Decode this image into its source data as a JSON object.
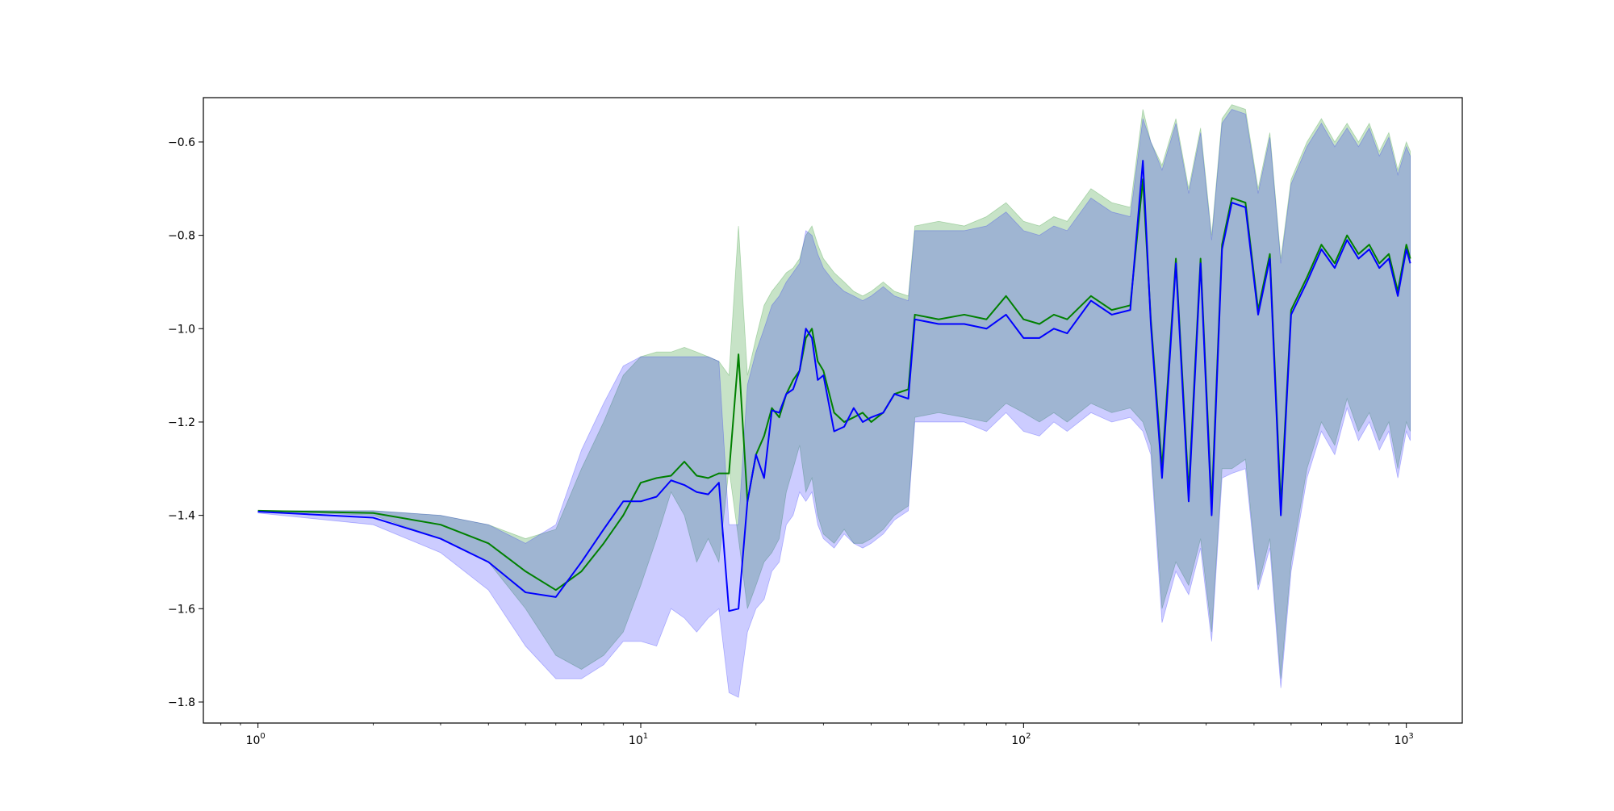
{
  "chart_data": {
    "type": "line",
    "title": "",
    "xlabel": "",
    "ylabel": "",
    "xscale": "log",
    "xlim": [
      0.72,
      1400
    ],
    "ylim": [
      -1.845,
      -0.505
    ],
    "x_ticks": [
      {
        "value": 1,
        "base": "10",
        "exp": "0"
      },
      {
        "value": 10,
        "base": "10",
        "exp": "1"
      },
      {
        "value": 100,
        "base": "10",
        "exp": "2"
      },
      {
        "value": 1000,
        "base": "10",
        "exp": "3"
      }
    ],
    "y_ticks": [
      {
        "value": -0.6,
        "label": "−0.6"
      },
      {
        "value": -0.8,
        "label": "−0.8"
      },
      {
        "value": -1.0,
        "label": "−1.0"
      },
      {
        "value": -1.2,
        "label": "−1.2"
      },
      {
        "value": -1.4,
        "label": "−1.4"
      },
      {
        "value": -1.6,
        "label": "−1.6"
      },
      {
        "value": -1.8,
        "label": "−1.8"
      }
    ],
    "grid": false,
    "legend": "none",
    "series": [
      {
        "color": "#008000",
        "band_color": "#008000",
        "band_opacity": 0.22,
        "x": [
          1,
          2,
          3,
          4,
          5,
          6,
          7,
          8,
          9,
          10,
          11,
          12,
          13,
          14,
          15,
          16,
          17,
          18,
          19,
          20,
          21,
          22,
          23,
          24,
          25,
          26,
          27,
          28,
          29,
          30,
          32,
          34,
          36,
          38,
          40,
          43,
          46,
          50,
          52,
          60,
          70,
          80,
          90,
          100,
          110,
          120,
          130,
          150,
          170,
          190,
          205,
          215,
          230,
          250,
          270,
          290,
          310,
          330,
          350,
          380,
          410,
          440,
          470,
          500,
          550,
          600,
          650,
          700,
          750,
          800,
          850,
          900,
          950,
          1000,
          1024
        ],
        "y": [
          -1.39,
          -1.395,
          -1.42,
          -1.46,
          -1.52,
          -1.56,
          -1.52,
          -1.46,
          -1.4,
          -1.33,
          -1.32,
          -1.315,
          -1.285,
          -1.315,
          -1.32,
          -1.31,
          -1.31,
          -1.055,
          -1.37,
          -1.27,
          -1.23,
          -1.17,
          -1.19,
          -1.14,
          -1.11,
          -1.09,
          -1.02,
          -1.0,
          -1.07,
          -1.09,
          -1.18,
          -1.2,
          -1.19,
          -1.18,
          -1.2,
          -1.18,
          -1.14,
          -1.13,
          -0.97,
          -0.98,
          -0.97,
          -0.98,
          -0.93,
          -0.98,
          -0.99,
          -0.97,
          -0.98,
          -0.93,
          -0.96,
          -0.95,
          -0.68,
          -0.98,
          -1.3,
          -0.85,
          -1.35,
          -0.85,
          -1.38,
          -0.82,
          -0.72,
          -0.73,
          -0.96,
          -0.84,
          -1.38,
          -0.96,
          -0.89,
          -0.82,
          -0.86,
          -0.8,
          -0.84,
          -0.82,
          -0.86,
          -0.84,
          -0.92,
          -0.82,
          -0.85
        ],
        "lower": [
          -1.39,
          -1.4,
          -1.45,
          -1.5,
          -1.6,
          -1.7,
          -1.73,
          -1.7,
          -1.65,
          -1.55,
          -1.45,
          -1.35,
          -1.4,
          -1.5,
          -1.45,
          -1.5,
          -1.3,
          -1.45,
          -1.6,
          -1.55,
          -1.5,
          -1.48,
          -1.45,
          -1.35,
          -1.3,
          -1.25,
          -1.35,
          -1.32,
          -1.4,
          -1.44,
          -1.46,
          -1.43,
          -1.46,
          -1.46,
          -1.45,
          -1.43,
          -1.4,
          -1.38,
          -1.19,
          -1.18,
          -1.19,
          -1.2,
          -1.16,
          -1.18,
          -1.2,
          -1.18,
          -1.2,
          -1.16,
          -1.18,
          -1.17,
          -1.2,
          -1.25,
          -1.6,
          -1.5,
          -1.55,
          -1.45,
          -1.65,
          -1.3,
          -1.3,
          -1.28,
          -1.55,
          -1.45,
          -1.75,
          -1.5,
          -1.3,
          -1.2,
          -1.25,
          -1.15,
          -1.22,
          -1.18,
          -1.24,
          -1.2,
          -1.3,
          -1.2,
          -1.22
        ],
        "upper": [
          -1.39,
          -1.39,
          -1.4,
          -1.42,
          -1.45,
          -1.43,
          -1.3,
          -1.2,
          -1.1,
          -1.06,
          -1.05,
          -1.05,
          -1.04,
          -1.05,
          -1.06,
          -1.07,
          -1.1,
          -0.78,
          -1.1,
          -1.02,
          -0.95,
          -0.92,
          -0.9,
          -0.88,
          -0.87,
          -0.85,
          -0.8,
          -0.78,
          -0.82,
          -0.85,
          -0.88,
          -0.9,
          -0.92,
          -0.93,
          -0.92,
          -0.9,
          -0.92,
          -0.93,
          -0.78,
          -0.77,
          -0.78,
          -0.76,
          -0.73,
          -0.77,
          -0.78,
          -0.76,
          -0.77,
          -0.7,
          -0.73,
          -0.74,
          -0.53,
          -0.6,
          -0.65,
          -0.55,
          -0.7,
          -0.57,
          -0.8,
          -0.55,
          -0.52,
          -0.53,
          -0.7,
          -0.58,
          -0.85,
          -0.68,
          -0.6,
          -0.55,
          -0.6,
          -0.56,
          -0.6,
          -0.56,
          -0.62,
          -0.58,
          -0.66,
          -0.6,
          -0.62
        ]
      },
      {
        "color": "#0000ff",
        "band_color": "#0000ff",
        "band_opacity": 0.2,
        "x": [
          1,
          2,
          3,
          4,
          5,
          6,
          7,
          8,
          9,
          10,
          11,
          12,
          13,
          14,
          15,
          16,
          17,
          18,
          19,
          20,
          21,
          22,
          23,
          24,
          25,
          26,
          27,
          28,
          29,
          30,
          32,
          34,
          36,
          38,
          40,
          43,
          46,
          50,
          52,
          60,
          70,
          80,
          90,
          100,
          110,
          120,
          130,
          150,
          170,
          190,
          205,
          215,
          230,
          250,
          270,
          290,
          310,
          330,
          350,
          380,
          410,
          440,
          470,
          500,
          550,
          600,
          650,
          700,
          750,
          800,
          850,
          900,
          950,
          1000,
          1024
        ],
        "y": [
          -1.392,
          -1.405,
          -1.45,
          -1.5,
          -1.565,
          -1.575,
          -1.5,
          -1.43,
          -1.37,
          -1.37,
          -1.36,
          -1.325,
          -1.335,
          -1.35,
          -1.355,
          -1.33,
          -1.605,
          -1.6,
          -1.37,
          -1.27,
          -1.32,
          -1.175,
          -1.18,
          -1.14,
          -1.13,
          -1.09,
          -1.0,
          -1.02,
          -1.11,
          -1.1,
          -1.22,
          -1.21,
          -1.17,
          -1.2,
          -1.19,
          -1.18,
          -1.14,
          -1.15,
          -0.98,
          -0.99,
          -0.99,
          -1.0,
          -0.97,
          -1.02,
          -1.02,
          -1.0,
          -1.01,
          -0.94,
          -0.97,
          -0.96,
          -0.64,
          -0.99,
          -1.32,
          -0.86,
          -1.37,
          -0.86,
          -1.4,
          -0.83,
          -0.73,
          -0.74,
          -0.97,
          -0.85,
          -1.4,
          -0.97,
          -0.9,
          -0.83,
          -0.87,
          -0.81,
          -0.85,
          -0.83,
          -0.87,
          -0.85,
          -0.93,
          -0.83,
          -0.86
        ],
        "lower": [
          -1.395,
          -1.42,
          -1.48,
          -1.56,
          -1.68,
          -1.75,
          -1.75,
          -1.72,
          -1.67,
          -1.67,
          -1.68,
          -1.6,
          -1.62,
          -1.65,
          -1.62,
          -1.6,
          -1.78,
          -1.79,
          -1.65,
          -1.6,
          -1.58,
          -1.52,
          -1.5,
          -1.42,
          -1.4,
          -1.35,
          -1.37,
          -1.35,
          -1.42,
          -1.45,
          -1.47,
          -1.44,
          -1.46,
          -1.47,
          -1.46,
          -1.44,
          -1.41,
          -1.39,
          -1.2,
          -1.2,
          -1.2,
          -1.22,
          -1.18,
          -1.22,
          -1.23,
          -1.2,
          -1.22,
          -1.18,
          -1.2,
          -1.19,
          -1.22,
          -1.27,
          -1.63,
          -1.52,
          -1.57,
          -1.47,
          -1.67,
          -1.32,
          -1.31,
          -1.3,
          -1.56,
          -1.47,
          -1.77,
          -1.52,
          -1.32,
          -1.22,
          -1.27,
          -1.17,
          -1.24,
          -1.2,
          -1.26,
          -1.22,
          -1.32,
          -1.22,
          -1.24
        ],
        "upper": [
          -1.39,
          -1.39,
          -1.4,
          -1.42,
          -1.46,
          -1.42,
          -1.26,
          -1.16,
          -1.08,
          -1.06,
          -1.06,
          -1.06,
          -1.06,
          -1.06,
          -1.06,
          -1.07,
          -1.42,
          -1.42,
          -1.12,
          -1.05,
          -1.0,
          -0.95,
          -0.93,
          -0.9,
          -0.88,
          -0.86,
          -0.79,
          -0.8,
          -0.84,
          -0.87,
          -0.9,
          -0.92,
          -0.93,
          -0.94,
          -0.93,
          -0.91,
          -0.93,
          -0.94,
          -0.79,
          -0.79,
          -0.79,
          -0.78,
          -0.75,
          -0.79,
          -0.8,
          -0.78,
          -0.79,
          -0.72,
          -0.75,
          -0.76,
          -0.55,
          -0.6,
          -0.66,
          -0.56,
          -0.71,
          -0.58,
          -0.81,
          -0.56,
          -0.53,
          -0.54,
          -0.71,
          -0.59,
          -0.86,
          -0.69,
          -0.61,
          -0.56,
          -0.61,
          -0.57,
          -0.61,
          -0.57,
          -0.63,
          -0.59,
          -0.67,
          -0.61,
          -0.63
        ]
      }
    ]
  }
}
